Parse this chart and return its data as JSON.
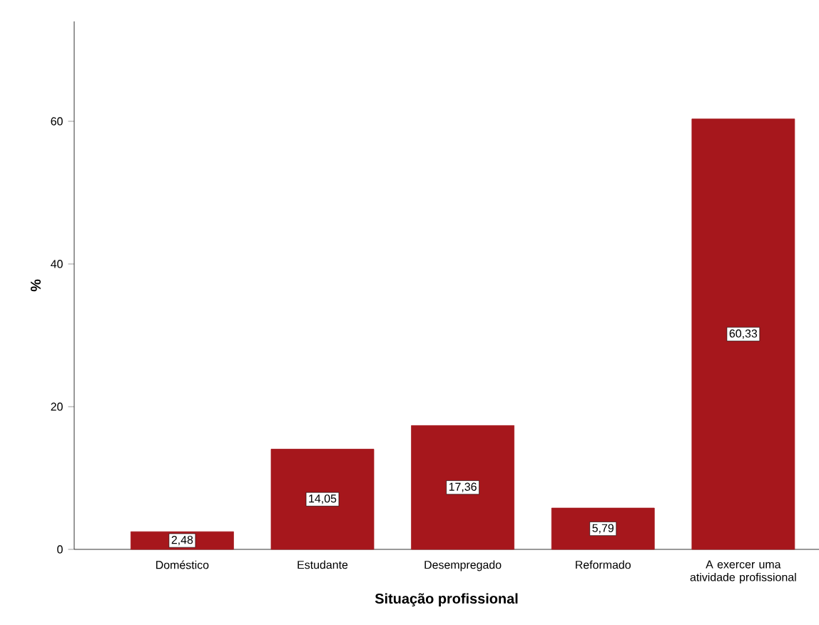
{
  "chart_data": {
    "type": "bar",
    "xlabel": "Situação profissional",
    "ylabel": "%",
    "categories": [
      "Doméstico",
      "Estudante",
      "Desempregado",
      "Reformado",
      "A exercer uma atividade profissional"
    ],
    "values": [
      2.48,
      14.05,
      17.36,
      5.79,
      60.33
    ],
    "value_labels": [
      "2,48",
      "14,05",
      "17,36",
      "5,79",
      "60,33"
    ],
    "color": "#a6171c",
    "ylim": [
      0,
      74
    ],
    "yticks": [
      0,
      20,
      40,
      60
    ],
    "grid": false
  }
}
